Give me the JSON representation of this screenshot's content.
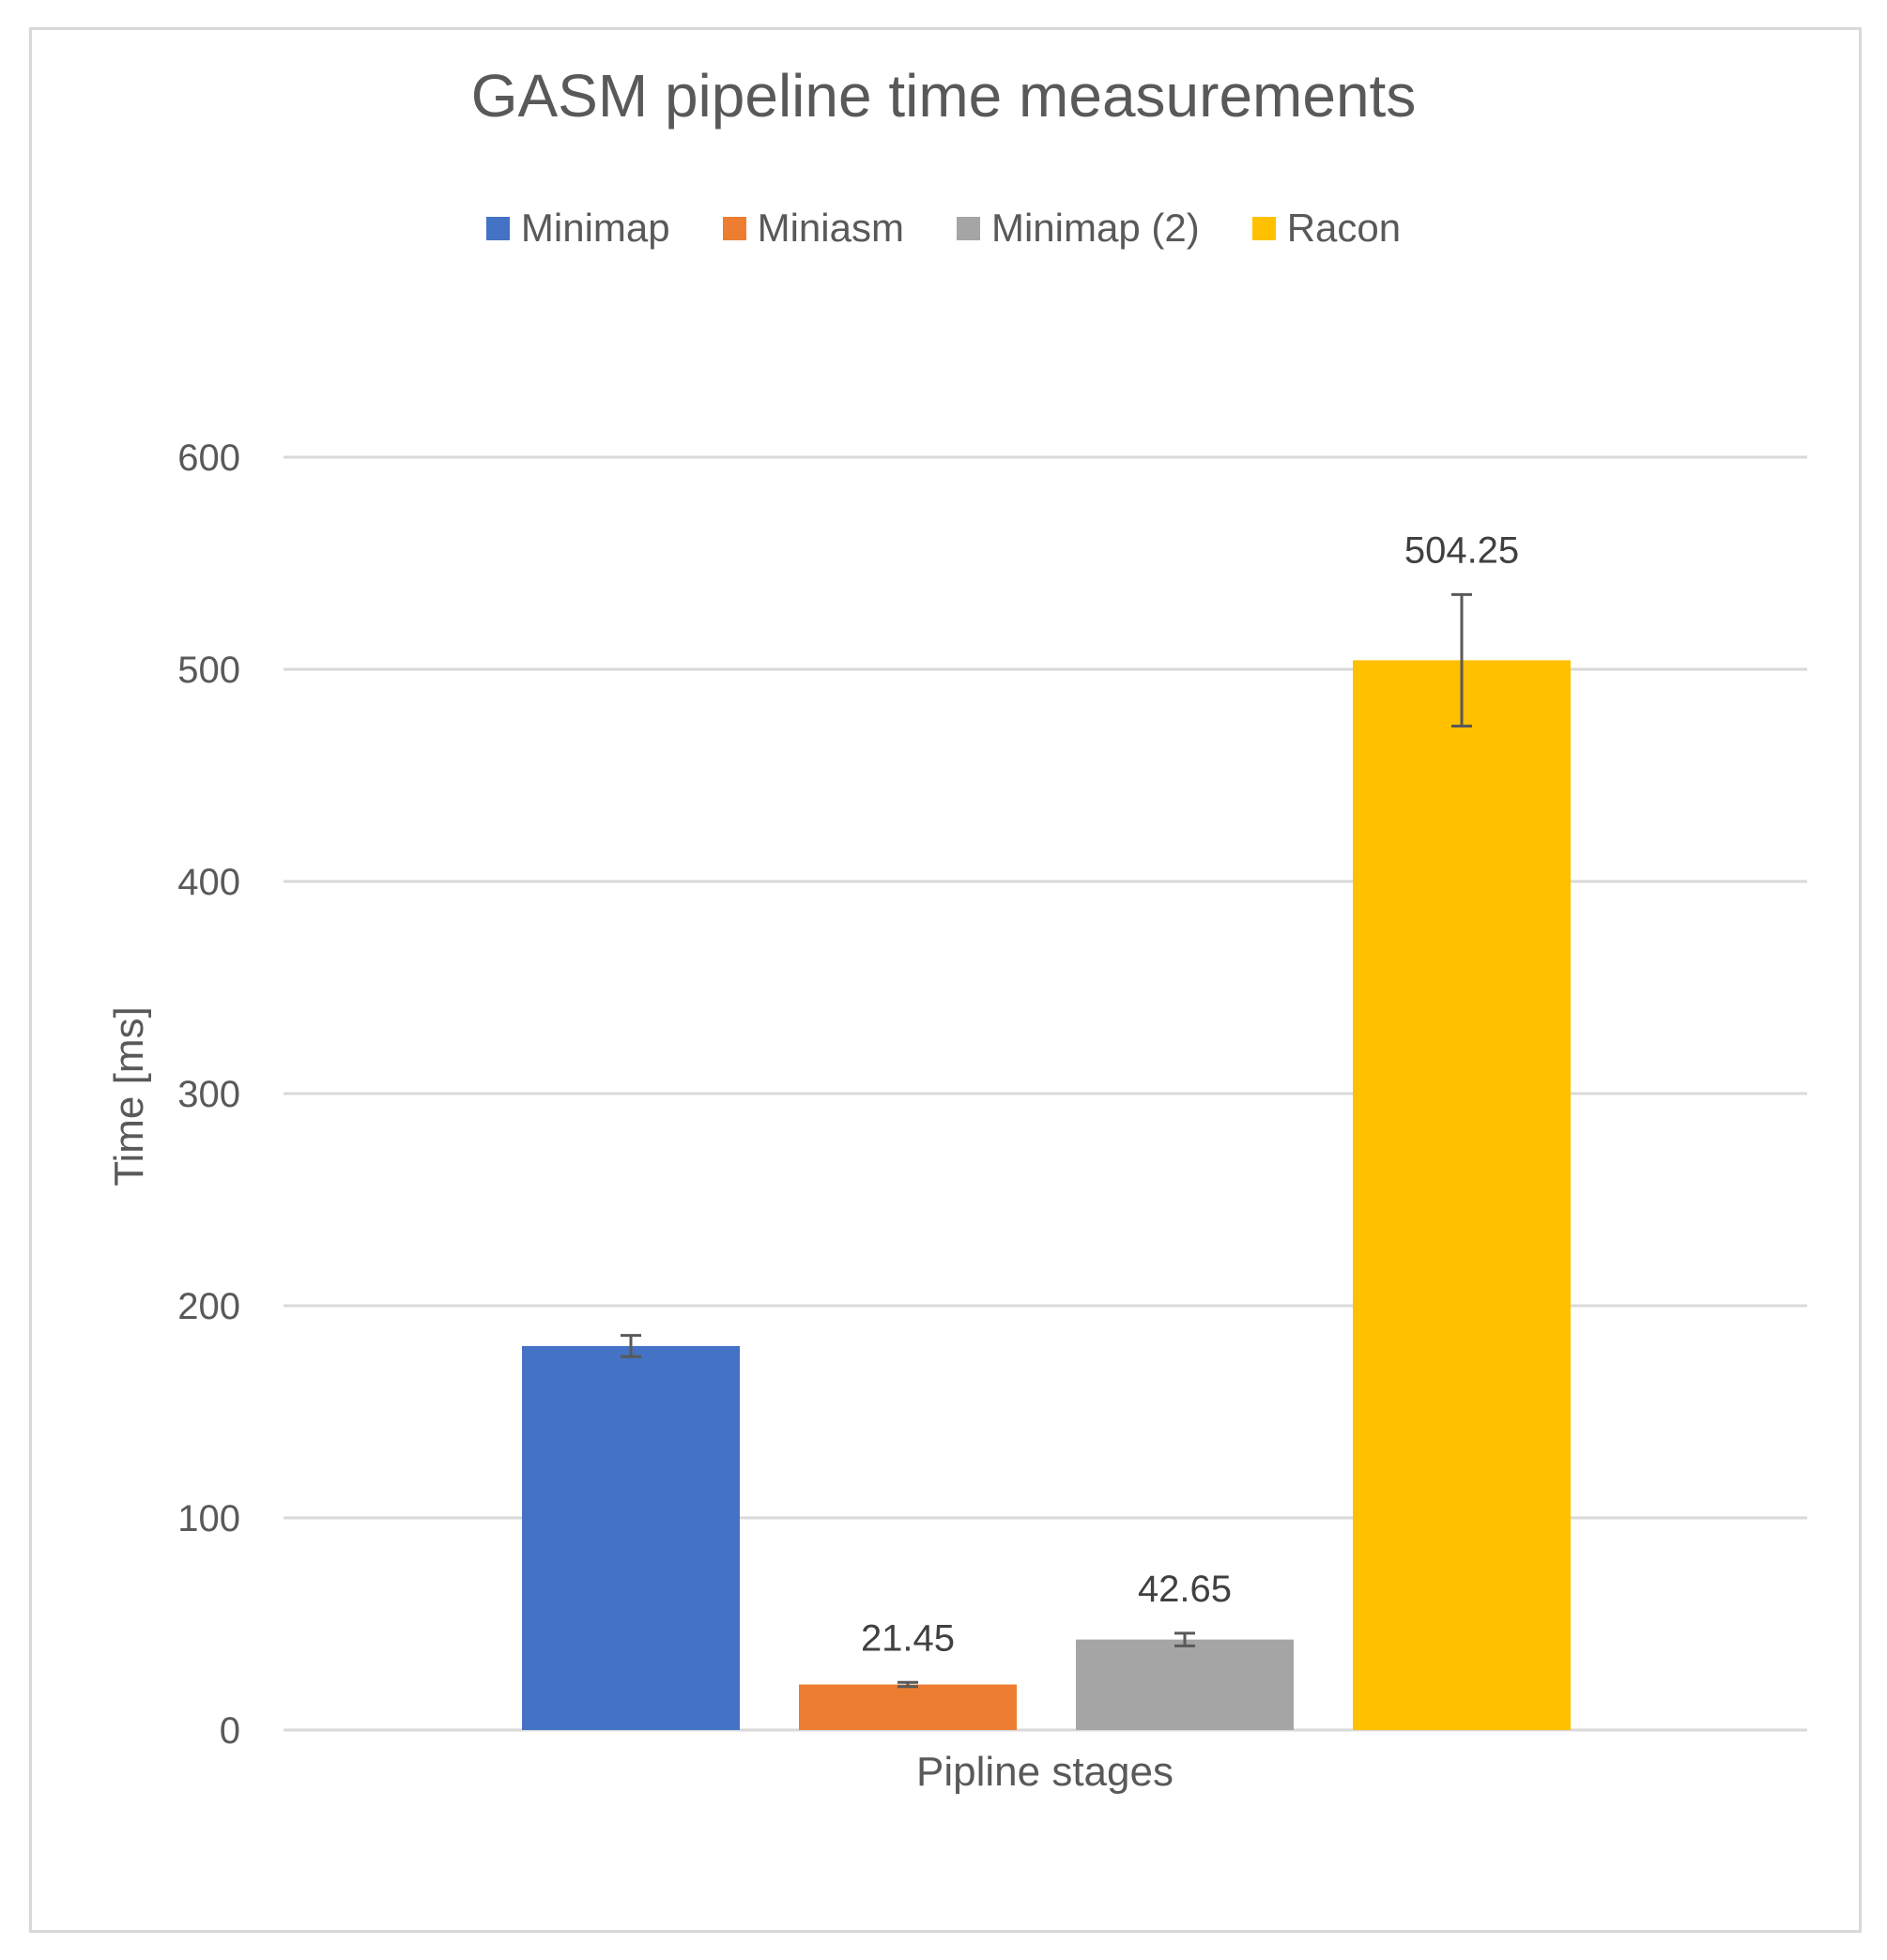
{
  "chart_data": {
    "type": "bar",
    "title": "GASM pipeline time measurements",
    "xlabel": "Pipline stages",
    "ylabel": "Time [ms]",
    "ylim": [
      0,
      600
    ],
    "yticks": [
      0,
      100,
      200,
      300,
      400,
      500,
      600
    ],
    "grid": true,
    "legend_position": "top",
    "series": [
      {
        "name": "Minimap",
        "value": 181,
        "error": 5,
        "label": "",
        "color": "#4472c4"
      },
      {
        "name": "Miniasm",
        "value": 21.45,
        "error": 1,
        "label": "21.45",
        "color": "#ed7d31"
      },
      {
        "name": "Minimap (2)",
        "value": 42.65,
        "error": 3,
        "label": "42.65",
        "color": "#a5a5a5"
      },
      {
        "name": "Racon",
        "value": 504.25,
        "error": 31,
        "label": "504.25",
        "color": "#ffc000"
      }
    ]
  }
}
